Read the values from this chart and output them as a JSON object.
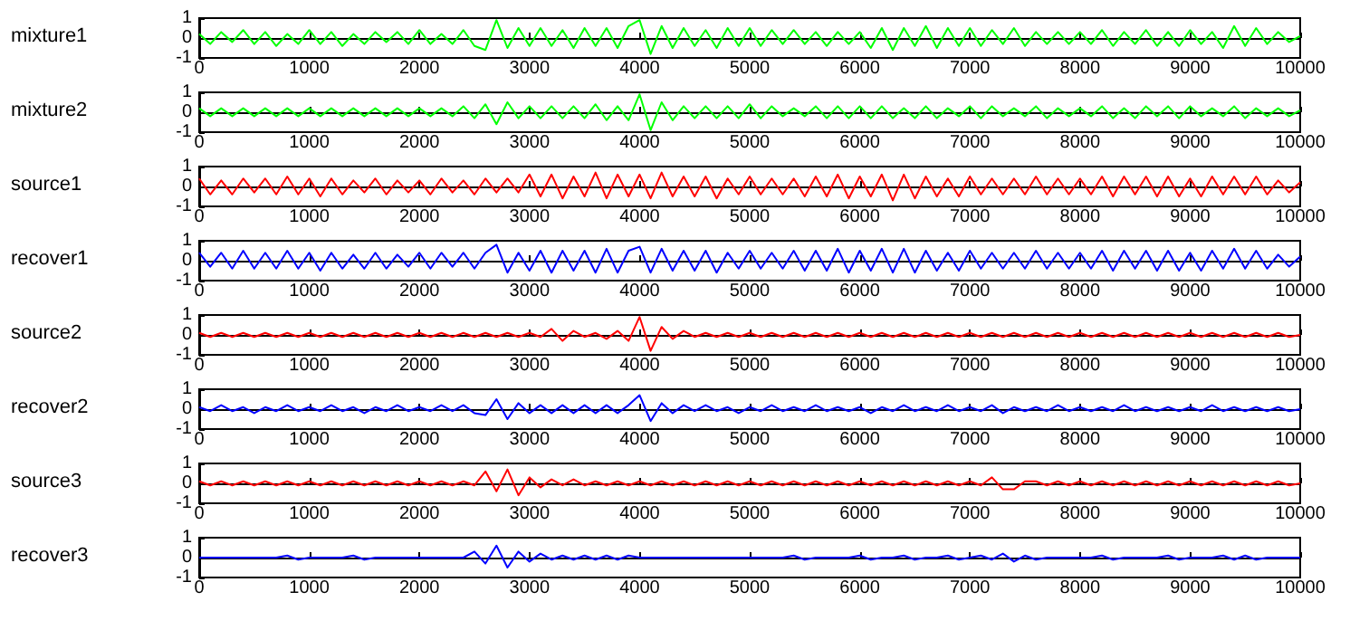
{
  "chart_data": [
    {
      "type": "line",
      "ylabel": "mixture1",
      "xlim": [
        0,
        10000
      ],
      "ylim": [
        -1,
        1
      ],
      "xticks": [
        0,
        1000,
        2000,
        3000,
        4000,
        5000,
        6000,
        7000,
        8000,
        9000,
        10000
      ],
      "yticks": [
        -1,
        0,
        1
      ],
      "x": [
        0,
        100,
        200,
        300,
        400,
        500,
        600,
        700,
        800,
        900,
        1000,
        1100,
        1200,
        1300,
        1400,
        1500,
        1600,
        1700,
        1800,
        1900,
        2000,
        2100,
        2200,
        2300,
        2400,
        2500,
        2600,
        2700,
        2800,
        2900,
        3000,
        3100,
        3200,
        3300,
        3400,
        3500,
        3600,
        3700,
        3800,
        3900,
        4000,
        4100,
        4200,
        4300,
        4400,
        4500,
        4600,
        4700,
        4800,
        4900,
        5000,
        5100,
        5200,
        5300,
        5400,
        5500,
        5600,
        5700,
        5800,
        5900,
        6000,
        6100,
        6200,
        6300,
        6400,
        6500,
        6600,
        6700,
        6800,
        6900,
        7000,
        7100,
        7200,
        7300,
        7400,
        7500,
        7600,
        7700,
        7800,
        7900,
        8000,
        8100,
        8200,
        8300,
        8400,
        8500,
        8600,
        8700,
        8800,
        8900,
        9000,
        9100,
        9200,
        9300,
        9400,
        9500,
        9600,
        9700,
        9800,
        9900,
        10000
      ],
      "series": [
        {
          "color": "#00ff00",
          "values": [
            0.2,
            -0.3,
            0.3,
            -0.2,
            0.4,
            -0.3,
            0.3,
            -0.4,
            0.2,
            -0.3,
            0.4,
            -0.3,
            0.3,
            -0.4,
            0.2,
            -0.3,
            0.3,
            -0.2,
            0.3,
            -0.3,
            0.4,
            -0.3,
            0.2,
            -0.3,
            0.4,
            -0.4,
            -0.6,
            0.9,
            -0.5,
            0.5,
            -0.4,
            0.5,
            -0.4,
            0.4,
            -0.5,
            0.5,
            -0.4,
            0.5,
            -0.5,
            0.6,
            0.9,
            -0.8,
            0.6,
            -0.5,
            0.5,
            -0.4,
            0.4,
            -0.5,
            0.5,
            -0.4,
            0.5,
            -0.4,
            0.4,
            -0.3,
            0.4,
            -0.3,
            0.3,
            -0.4,
            0.3,
            -0.3,
            0.3,
            -0.5,
            0.5,
            -0.6,
            0.5,
            -0.4,
            0.6,
            -0.5,
            0.5,
            -0.4,
            0.5,
            -0.4,
            0.4,
            -0.3,
            0.5,
            -0.4,
            0.3,
            -0.3,
            0.3,
            -0.3,
            0.3,
            -0.3,
            0.4,
            -0.4,
            0.3,
            -0.3,
            0.4,
            -0.4,
            0.3,
            -0.4,
            0.4,
            -0.3,
            0.3,
            -0.5,
            0.6,
            -0.4,
            0.5,
            -0.3,
            0.3,
            -0.2,
            0.1
          ]
        }
      ]
    },
    {
      "type": "line",
      "ylabel": "mixture2",
      "xlim": [
        0,
        10000
      ],
      "ylim": [
        -1,
        1
      ],
      "xticks": [
        0,
        1000,
        2000,
        3000,
        4000,
        5000,
        6000,
        7000,
        8000,
        9000,
        10000
      ],
      "yticks": [
        -1,
        0,
        1
      ],
      "x": [
        0,
        100,
        200,
        300,
        400,
        500,
        600,
        700,
        800,
        900,
        1000,
        1100,
        1200,
        1300,
        1400,
        1500,
        1600,
        1700,
        1800,
        1900,
        2000,
        2100,
        2200,
        2300,
        2400,
        2500,
        2600,
        2700,
        2800,
        2900,
        3000,
        3100,
        3200,
        3300,
        3400,
        3500,
        3600,
        3700,
        3800,
        3900,
        4000,
        4100,
        4200,
        4300,
        4400,
        4500,
        4600,
        4700,
        4800,
        4900,
        5000,
        5100,
        5200,
        5300,
        5400,
        5500,
        5600,
        5700,
        5800,
        5900,
        6000,
        6100,
        6200,
        6300,
        6400,
        6500,
        6600,
        6700,
        6800,
        6900,
        7000,
        7100,
        7200,
        7300,
        7400,
        7500,
        7600,
        7700,
        7800,
        7900,
        8000,
        8100,
        8200,
        8300,
        8400,
        8500,
        8600,
        8700,
        8800,
        8900,
        9000,
        9100,
        9200,
        9300,
        9400,
        9500,
        9600,
        9700,
        9800,
        9900,
        10000
      ],
      "series": [
        {
          "color": "#00ff00",
          "values": [
            0.2,
            -0.2,
            0.2,
            -0.2,
            0.2,
            -0.2,
            0.2,
            -0.2,
            0.2,
            -0.2,
            0.2,
            -0.2,
            0.2,
            -0.2,
            0.2,
            -0.2,
            0.2,
            -0.2,
            0.2,
            -0.2,
            0.2,
            -0.2,
            0.2,
            -0.2,
            0.3,
            -0.3,
            0.4,
            -0.6,
            0.5,
            -0.3,
            0.3,
            -0.3,
            0.3,
            -0.3,
            0.3,
            -0.3,
            0.4,
            -0.4,
            0.3,
            -0.4,
            0.9,
            -0.9,
            0.5,
            -0.4,
            0.3,
            -0.3,
            0.3,
            -0.3,
            0.3,
            -0.3,
            0.4,
            -0.3,
            0.3,
            -0.2,
            0.2,
            -0.2,
            0.3,
            -0.3,
            0.3,
            -0.3,
            0.3,
            -0.3,
            0.3,
            -0.3,
            0.2,
            -0.3,
            0.3,
            -0.3,
            0.2,
            -0.2,
            0.3,
            -0.3,
            0.3,
            -0.2,
            0.2,
            -0.2,
            0.3,
            -0.3,
            0.2,
            -0.2,
            0.2,
            -0.2,
            0.3,
            -0.3,
            0.2,
            -0.3,
            0.3,
            -0.2,
            0.3,
            -0.3,
            0.3,
            -0.2,
            0.2,
            -0.2,
            0.3,
            -0.3,
            0.2,
            -0.2,
            0.2,
            -0.2,
            0.1
          ]
        }
      ]
    },
    {
      "type": "line",
      "ylabel": "source1",
      "xlim": [
        0,
        10000
      ],
      "ylim": [
        -1,
        1
      ],
      "xticks": [
        0,
        1000,
        2000,
        3000,
        4000,
        5000,
        6000,
        7000,
        8000,
        9000,
        10000
      ],
      "yticks": [
        -1,
        0,
        1
      ],
      "x": [
        0,
        100,
        200,
        300,
        400,
        500,
        600,
        700,
        800,
        900,
        1000,
        1100,
        1200,
        1300,
        1400,
        1500,
        1600,
        1700,
        1800,
        1900,
        2000,
        2100,
        2200,
        2300,
        2400,
        2500,
        2600,
        2700,
        2800,
        2900,
        3000,
        3100,
        3200,
        3300,
        3400,
        3500,
        3600,
        3700,
        3800,
        3900,
        4000,
        4100,
        4200,
        4300,
        4400,
        4500,
        4600,
        4700,
        4800,
        4900,
        5000,
        5100,
        5200,
        5300,
        5400,
        5500,
        5600,
        5700,
        5800,
        5900,
        6000,
        6100,
        6200,
        6300,
        6400,
        6500,
        6600,
        6700,
        6800,
        6900,
        7000,
        7100,
        7200,
        7300,
        7400,
        7500,
        7600,
        7700,
        7800,
        7900,
        8000,
        8100,
        8200,
        8300,
        8400,
        8500,
        8600,
        8700,
        8800,
        8900,
        9000,
        9100,
        9200,
        9300,
        9400,
        9500,
        9600,
        9700,
        9800,
        9900,
        10000
      ],
      "series": [
        {
          "color": "#ff0000",
          "values": [
            0.4,
            -0.4,
            0.3,
            -0.4,
            0.4,
            -0.3,
            0.4,
            -0.4,
            0.5,
            -0.4,
            0.4,
            -0.5,
            0.4,
            -0.4,
            0.3,
            -0.3,
            0.4,
            -0.4,
            0.3,
            -0.3,
            0.3,
            -0.4,
            0.4,
            -0.3,
            0.3,
            -0.4,
            0.4,
            -0.3,
            0.4,
            -0.3,
            0.6,
            -0.5,
            0.6,
            -0.6,
            0.5,
            -0.5,
            0.7,
            -0.6,
            0.6,
            -0.5,
            0.6,
            -0.6,
            0.7,
            -0.5,
            0.5,
            -0.5,
            0.5,
            -0.6,
            0.4,
            -0.4,
            0.5,
            -0.4,
            0.4,
            -0.4,
            0.4,
            -0.5,
            0.5,
            -0.5,
            0.6,
            -0.6,
            0.5,
            -0.5,
            0.6,
            -0.7,
            0.6,
            -0.6,
            0.5,
            -0.5,
            0.4,
            -0.5,
            0.5,
            -0.4,
            0.4,
            -0.4,
            0.4,
            -0.4,
            0.5,
            -0.4,
            0.4,
            -0.4,
            0.4,
            -0.4,
            0.5,
            -0.5,
            0.5,
            -0.4,
            0.5,
            -0.5,
            0.5,
            -0.5,
            0.4,
            -0.5,
            0.5,
            -0.4,
            0.5,
            -0.4,
            0.5,
            -0.4,
            0.3,
            -0.3,
            0.2
          ]
        }
      ]
    },
    {
      "type": "line",
      "ylabel": "recover1",
      "xlim": [
        0,
        10000
      ],
      "ylim": [
        -1,
        1
      ],
      "xticks": [
        0,
        1000,
        2000,
        3000,
        4000,
        5000,
        6000,
        7000,
        8000,
        9000,
        10000
      ],
      "yticks": [
        -1,
        0,
        1
      ],
      "x": [
        0,
        100,
        200,
        300,
        400,
        500,
        600,
        700,
        800,
        900,
        1000,
        1100,
        1200,
        1300,
        1400,
        1500,
        1600,
        1700,
        1800,
        1900,
        2000,
        2100,
        2200,
        2300,
        2400,
        2500,
        2600,
        2700,
        2800,
        2900,
        3000,
        3100,
        3200,
        3300,
        3400,
        3500,
        3600,
        3700,
        3800,
        3900,
        4000,
        4100,
        4200,
        4300,
        4400,
        4500,
        4600,
        4700,
        4800,
        4900,
        5000,
        5100,
        5200,
        5300,
        5400,
        5500,
        5600,
        5700,
        5800,
        5900,
        6000,
        6100,
        6200,
        6300,
        6400,
        6500,
        6600,
        6700,
        6800,
        6900,
        7000,
        7100,
        7200,
        7300,
        7400,
        7500,
        7600,
        7700,
        7800,
        7900,
        8000,
        8100,
        8200,
        8300,
        8400,
        8500,
        8600,
        8700,
        8800,
        8900,
        9000,
        9100,
        9200,
        9300,
        9400,
        9500,
        9600,
        9700,
        9800,
        9900,
        10000
      ],
      "series": [
        {
          "color": "#0000ff",
          "values": [
            0.4,
            -0.3,
            0.4,
            -0.4,
            0.5,
            -0.4,
            0.4,
            -0.4,
            0.5,
            -0.4,
            0.4,
            -0.5,
            0.4,
            -0.4,
            0.3,
            -0.4,
            0.4,
            -0.4,
            0.3,
            -0.3,
            0.4,
            -0.4,
            0.4,
            -0.3,
            0.4,
            -0.4,
            0.4,
            0.8,
            -0.6,
            0.4,
            -0.5,
            0.5,
            -0.6,
            0.5,
            -0.5,
            0.5,
            -0.6,
            0.6,
            -0.6,
            0.5,
            0.7,
            -0.6,
            0.6,
            -0.5,
            0.5,
            -0.5,
            0.5,
            -0.6,
            0.4,
            -0.4,
            0.5,
            -0.4,
            0.4,
            -0.4,
            0.5,
            -0.5,
            0.5,
            -0.5,
            0.6,
            -0.6,
            0.5,
            -0.5,
            0.6,
            -0.6,
            0.6,
            -0.6,
            0.5,
            -0.5,
            0.4,
            -0.5,
            0.5,
            -0.4,
            0.4,
            -0.4,
            0.4,
            -0.4,
            0.5,
            -0.4,
            0.4,
            -0.4,
            0.4,
            -0.4,
            0.5,
            -0.5,
            0.5,
            -0.4,
            0.5,
            -0.5,
            0.5,
            -0.5,
            0.4,
            -0.5,
            0.5,
            -0.4,
            0.6,
            -0.4,
            0.5,
            -0.4,
            0.3,
            -0.3,
            0.2
          ]
        }
      ]
    },
    {
      "type": "line",
      "ylabel": "source2",
      "xlim": [
        0,
        10000
      ],
      "ylim": [
        -1,
        1
      ],
      "xticks": [
        0,
        1000,
        2000,
        3000,
        4000,
        5000,
        6000,
        7000,
        8000,
        9000,
        10000
      ],
      "yticks": [
        -1,
        0,
        1
      ],
      "x": [
        0,
        100,
        200,
        300,
        400,
        500,
        600,
        700,
        800,
        900,
        1000,
        1100,
        1200,
        1300,
        1400,
        1500,
        1600,
        1700,
        1800,
        1900,
        2000,
        2100,
        2200,
        2300,
        2400,
        2500,
        2600,
        2700,
        2800,
        2900,
        3000,
        3100,
        3200,
        3300,
        3400,
        3500,
        3600,
        3700,
        3800,
        3900,
        4000,
        4100,
        4200,
        4300,
        4400,
        4500,
        4600,
        4700,
        4800,
        4900,
        5000,
        5100,
        5200,
        5300,
        5400,
        5500,
        5600,
        5700,
        5800,
        5900,
        6000,
        6100,
        6200,
        6300,
        6400,
        6500,
        6600,
        6700,
        6800,
        6900,
        7000,
        7100,
        7200,
        7300,
        7400,
        7500,
        7600,
        7700,
        7800,
        7900,
        8000,
        8100,
        8200,
        8300,
        8400,
        8500,
        8600,
        8700,
        8800,
        8900,
        9000,
        9100,
        9200,
        9300,
        9400,
        9500,
        9600,
        9700,
        9800,
        9900,
        10000
      ],
      "series": [
        {
          "color": "#ff0000",
          "values": [
            0.1,
            -0.1,
            0.1,
            -0.1,
            0.1,
            -0.1,
            0.1,
            -0.1,
            0.1,
            -0.1,
            0.1,
            -0.1,
            0.1,
            -0.1,
            0.1,
            -0.1,
            0.1,
            -0.1,
            0.1,
            -0.1,
            0.1,
            -0.1,
            0.1,
            -0.1,
            0.1,
            -0.1,
            0.1,
            -0.1,
            0.1,
            -0.1,
            0.1,
            -0.1,
            0.3,
            -0.3,
            0.2,
            -0.1,
            0.1,
            -0.2,
            0.2,
            -0.3,
            0.9,
            -0.8,
            0.4,
            -0.2,
            0.2,
            -0.1,
            0.1,
            -0.1,
            0.1,
            -0.1,
            0.1,
            -0.1,
            0.1,
            -0.1,
            0.1,
            -0.1,
            0.1,
            -0.1,
            0.1,
            -0.1,
            0.1,
            -0.1,
            0.1,
            -0.1,
            0.1,
            -0.1,
            0.1,
            -0.1,
            0.1,
            -0.1,
            0.1,
            -0.1,
            0.1,
            -0.1,
            0.1,
            -0.1,
            0.1,
            -0.1,
            0.1,
            -0.1,
            0.1,
            -0.1,
            0.1,
            -0.1,
            0.1,
            -0.1,
            0.1,
            -0.1,
            0.1,
            -0.1,
            0.1,
            -0.1,
            0.1,
            -0.1,
            0.1,
            -0.1,
            0.1,
            -0.1,
            0.1,
            -0.1,
            0
          ]
        }
      ]
    },
    {
      "type": "line",
      "ylabel": "recover2",
      "xlim": [
        0,
        10000
      ],
      "ylim": [
        -1,
        1
      ],
      "xticks": [
        0,
        1000,
        2000,
        3000,
        4000,
        5000,
        6000,
        7000,
        8000,
        9000,
        10000
      ],
      "yticks": [
        -1,
        0,
        1
      ],
      "x": [
        0,
        100,
        200,
        300,
        400,
        500,
        600,
        700,
        800,
        900,
        1000,
        1100,
        1200,
        1300,
        1400,
        1500,
        1600,
        1700,
        1800,
        1900,
        2000,
        2100,
        2200,
        2300,
        2400,
        2500,
        2600,
        2700,
        2800,
        2900,
        3000,
        3100,
        3200,
        3300,
        3400,
        3500,
        3600,
        3700,
        3800,
        3900,
        4000,
        4100,
        4200,
        4300,
        4400,
        4500,
        4600,
        4700,
        4800,
        4900,
        5000,
        5100,
        5200,
        5300,
        5400,
        5500,
        5600,
        5700,
        5800,
        5900,
        6000,
        6100,
        6200,
        6300,
        6400,
        6500,
        6600,
        6700,
        6800,
        6900,
        7000,
        7100,
        7200,
        7300,
        7400,
        7500,
        7600,
        7700,
        7800,
        7900,
        8000,
        8100,
        8200,
        8300,
        8400,
        8500,
        8600,
        8700,
        8800,
        8900,
        9000,
        9100,
        9200,
        9300,
        9400,
        9500,
        9600,
        9700,
        9800,
        9900,
        10000
      ],
      "series": [
        {
          "color": "#0000ff",
          "values": [
            0.1,
            -0.1,
            0.2,
            -0.1,
            0.1,
            -0.2,
            0.1,
            -0.1,
            0.2,
            -0.1,
            0.1,
            -0.1,
            0.2,
            -0.1,
            0.1,
            -0.2,
            0.1,
            -0.1,
            0.2,
            -0.1,
            0.1,
            -0.1,
            0.2,
            -0.1,
            0.2,
            -0.2,
            -0.3,
            0.5,
            -0.5,
            0.3,
            -0.2,
            0.2,
            -0.2,
            0.2,
            -0.2,
            0.2,
            -0.2,
            0.2,
            -0.2,
            0.2,
            0.7,
            -0.6,
            0.3,
            -0.2,
            0.2,
            -0.1,
            0.2,
            -0.1,
            0.1,
            -0.2,
            0.1,
            -0.1,
            0.2,
            -0.1,
            0.1,
            -0.1,
            0.2,
            -0.1,
            0.1,
            -0.1,
            0.1,
            -0.2,
            0.1,
            -0.1,
            0.2,
            -0.1,
            0.1,
            -0.1,
            0.2,
            -0.1,
            0.1,
            -0.1,
            0.2,
            -0.2,
            0.1,
            -0.1,
            0.1,
            -0.1,
            0.2,
            -0.1,
            0.1,
            -0.1,
            0.1,
            -0.1,
            0.2,
            -0.1,
            0.1,
            -0.1,
            0.1,
            -0.1,
            0.1,
            -0.1,
            0.2,
            -0.1,
            0.1,
            -0.1,
            0.1,
            -0.1,
            0.1,
            -0.1,
            0
          ]
        }
      ]
    },
    {
      "type": "line",
      "ylabel": "source3",
      "xlim": [
        0,
        10000
      ],
      "ylim": [
        -1,
        1
      ],
      "xticks": [
        0,
        1000,
        2000,
        3000,
        4000,
        5000,
        6000,
        7000,
        8000,
        9000,
        10000
      ],
      "yticks": [
        -1,
        0,
        1
      ],
      "x": [
        0,
        100,
        200,
        300,
        400,
        500,
        600,
        700,
        800,
        900,
        1000,
        1100,
        1200,
        1300,
        1400,
        1500,
        1600,
        1700,
        1800,
        1900,
        2000,
        2100,
        2200,
        2300,
        2400,
        2500,
        2600,
        2700,
        2800,
        2900,
        3000,
        3100,
        3200,
        3300,
        3400,
        3500,
        3600,
        3700,
        3800,
        3900,
        4000,
        4100,
        4200,
        4300,
        4400,
        4500,
        4600,
        4700,
        4800,
        4900,
        5000,
        5100,
        5200,
        5300,
        5400,
        5500,
        5600,
        5700,
        5800,
        5900,
        6000,
        6100,
        6200,
        6300,
        6400,
        6500,
        6600,
        6700,
        6800,
        6900,
        7000,
        7100,
        7200,
        7300,
        7400,
        7500,
        7600,
        7700,
        7800,
        7900,
        8000,
        8100,
        8200,
        8300,
        8400,
        8500,
        8600,
        8700,
        8800,
        8900,
        9000,
        9100,
        9200,
        9300,
        9400,
        9500,
        9600,
        9700,
        9800,
        9900,
        10000
      ],
      "series": [
        {
          "color": "#ff0000",
          "values": [
            0.1,
            -0.1,
            0.1,
            -0.1,
            0.1,
            -0.1,
            0.1,
            -0.1,
            0.1,
            -0.1,
            0.1,
            -0.1,
            0.1,
            -0.1,
            0.1,
            -0.1,
            0.1,
            -0.1,
            0.1,
            -0.1,
            0.1,
            -0.1,
            0.1,
            -0.1,
            0.1,
            -0.1,
            0.6,
            -0.4,
            0.7,
            -0.6,
            0.3,
            -0.2,
            0.2,
            -0.1,
            0.2,
            -0.1,
            0.1,
            -0.1,
            0.1,
            -0.1,
            0.1,
            -0.1,
            0.1,
            -0.1,
            0.1,
            -0.1,
            0.1,
            -0.1,
            0.1,
            -0.1,
            0.1,
            -0.1,
            0.1,
            -0.1,
            0.1,
            -0.1,
            0.1,
            -0.1,
            0.1,
            -0.1,
            0.1,
            -0.1,
            0.1,
            -0.1,
            0.1,
            -0.1,
            0.1,
            -0.1,
            0.1,
            -0.1,
            0.1,
            -0.1,
            0.3,
            -0.3,
            -0.3,
            0.1,
            0.1,
            -0.1,
            0.1,
            -0.1,
            0.1,
            -0.1,
            0.1,
            -0.1,
            0.1,
            -0.1,
            0.1,
            -0.1,
            0.1,
            -0.1,
            0.1,
            -0.1,
            0.1,
            -0.1,
            0.1,
            -0.1,
            0.1,
            -0.1,
            0.1,
            -0.1,
            0
          ]
        }
      ]
    },
    {
      "type": "line",
      "ylabel": "recover3",
      "xlim": [
        0,
        10000
      ],
      "ylim": [
        -1,
        1
      ],
      "xticks": [
        0,
        1000,
        2000,
        3000,
        4000,
        5000,
        6000,
        7000,
        8000,
        9000,
        10000
      ],
      "yticks": [
        -1,
        0,
        1
      ],
      "x": [
        0,
        100,
        200,
        300,
        400,
        500,
        600,
        700,
        800,
        900,
        1000,
        1100,
        1200,
        1300,
        1400,
        1500,
        1600,
        1700,
        1800,
        1900,
        2000,
        2100,
        2200,
        2300,
        2400,
        2500,
        2600,
        2700,
        2800,
        2900,
        3000,
        3100,
        3200,
        3300,
        3400,
        3500,
        3600,
        3700,
        3800,
        3900,
        4000,
        4100,
        4200,
        4300,
        4400,
        4500,
        4600,
        4700,
        4800,
        4900,
        5000,
        5100,
        5200,
        5300,
        5400,
        5500,
        5600,
        5700,
        5800,
        5900,
        6000,
        6100,
        6200,
        6300,
        6400,
        6500,
        6600,
        6700,
        6800,
        6900,
        7000,
        7100,
        7200,
        7300,
        7400,
        7500,
        7600,
        7700,
        7800,
        7900,
        8000,
        8100,
        8200,
        8300,
        8400,
        8500,
        8600,
        8700,
        8800,
        8900,
        9000,
        9100,
        9200,
        9300,
        9400,
        9500,
        9600,
        9700,
        9800,
        9900,
        10000
      ],
      "series": [
        {
          "color": "#0000ff",
          "values": [
            0,
            0,
            0,
            0,
            0,
            0,
            0,
            0,
            0.1,
            -0.1,
            0,
            0,
            0,
            0,
            0.1,
            -0.1,
            0,
            0,
            0,
            0,
            0,
            0,
            0,
            0,
            0,
            0.3,
            -0.3,
            0.6,
            -0.5,
            0.3,
            -0.2,
            0.2,
            -0.1,
            0.1,
            -0.1,
            0.1,
            -0.1,
            0.1,
            -0.1,
            0.1,
            0,
            0,
            0,
            0,
            0,
            0,
            0,
            0,
            0,
            0,
            0,
            0,
            0,
            0,
            0.1,
            -0.1,
            0,
            0,
            0,
            0,
            0.1,
            -0.1,
            0,
            0,
            0.1,
            -0.1,
            0,
            0,
            0.1,
            -0.1,
            0,
            0.1,
            -0.1,
            0.2,
            -0.2,
            0.1,
            -0.1,
            0,
            0,
            0,
            0,
            0,
            0.1,
            -0.1,
            0,
            0,
            0,
            0,
            0.1,
            -0.1,
            0,
            0,
            0,
            0.1,
            -0.1,
            0.1,
            -0.1,
            0,
            0,
            0,
            0
          ]
        }
      ]
    }
  ]
}
